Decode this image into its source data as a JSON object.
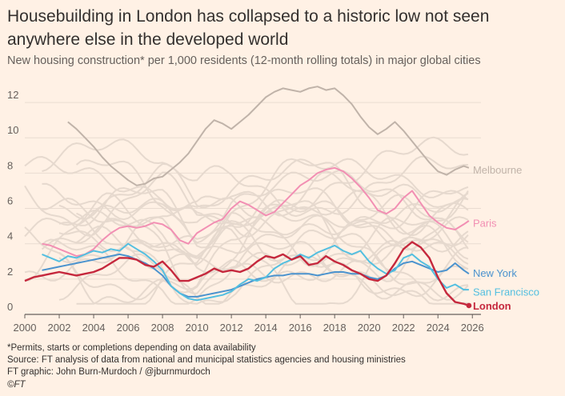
{
  "header": {
    "title": "Housebuilding in London has collapsed to a historic low not seen anywhere else in the developed world",
    "subtitle": "New housing construction* per 1,000 residents (12-month rolling totals) in major global cities"
  },
  "footer": {
    "note": "*Permits, starts or completions depending on data availability",
    "source": "Source: FT analysis of data from national and municipal statistics agencies and housing ministries",
    "credit": "FT graphic: John Burn-Murdoch / @jburnmurdoch",
    "copyright": "©FT"
  },
  "colors": {
    "background": "#FFF1E5",
    "background_city": "#E6D9CE",
    "melbourne": "#C0B3A9",
    "paris": "#F28FB3",
    "new_york": "#4B93CE",
    "san_francisco": "#53BFE0",
    "london": "#C5283D",
    "axis": "#66605C"
  },
  "chart_data": {
    "type": "line",
    "xlim": [
      2000,
      2026.5
    ],
    "ylim": [
      0,
      13
    ],
    "xticks": [
      2000,
      2002,
      2004,
      2006,
      2008,
      2010,
      2012,
      2014,
      2016,
      2018,
      2020,
      2022,
      2024,
      2026
    ],
    "yticks": [
      0,
      2,
      4,
      6,
      8,
      10,
      12
    ],
    "grid": true,
    "legend": "direct labels at line ends",
    "series": [
      {
        "name": "Melbourne",
        "highlight": true,
        "x": [
          2002.5,
          2003,
          2003.5,
          2004,
          2004.5,
          2005,
          2005.5,
          2006,
          2006.5,
          2007,
          2007.5,
          2008,
          2008.5,
          2009,
          2009.5,
          2010,
          2010.5,
          2011,
          2011.5,
          2012,
          2012.5,
          2013,
          2013.5,
          2014,
          2014.5,
          2015,
          2015.5,
          2016,
          2016.5,
          2017,
          2017.5,
          2018,
          2018.5,
          2019,
          2019.5,
          2020,
          2020.5,
          2021,
          2021.5,
          2022,
          2022.5,
          2023,
          2023.5,
          2024,
          2024.5,
          2025,
          2025.5,
          2025.8
        ],
        "values": [
          10.9,
          10.5,
          10.0,
          9.5,
          8.9,
          8.4,
          8.0,
          7.6,
          7.3,
          7.4,
          7.7,
          7.8,
          8.2,
          8.6,
          9.1,
          9.8,
          10.5,
          11.0,
          10.8,
          10.5,
          10.9,
          11.3,
          11.8,
          12.3,
          12.6,
          12.8,
          12.7,
          12.6,
          12.8,
          12.9,
          12.7,
          12.8,
          12.4,
          11.9,
          11.2,
          10.6,
          10.2,
          10.5,
          10.9,
          10.4,
          9.8,
          9.2,
          8.6,
          8.1,
          7.9,
          8.2,
          8.4,
          8.3
        ]
      },
      {
        "name": "Paris",
        "highlight": true,
        "x": [
          2001,
          2001.5,
          2002,
          2002.5,
          2003,
          2003.5,
          2004,
          2004.5,
          2005,
          2005.5,
          2006,
          2006.5,
          2007,
          2007.5,
          2008,
          2008.5,
          2009,
          2009.5,
          2010,
          2010.5,
          2011,
          2011.5,
          2012,
          2012.5,
          2013,
          2013.5,
          2014,
          2014.5,
          2015,
          2015.5,
          2016,
          2016.5,
          2017,
          2017.5,
          2018,
          2018.5,
          2019,
          2019.5,
          2020,
          2020.5,
          2021,
          2021.5,
          2022,
          2022.5,
          2023,
          2023.5,
          2024,
          2024.5,
          2025,
          2025.5,
          2025.8
        ],
        "values": [
          4.0,
          3.9,
          3.7,
          3.5,
          3.3,
          3.4,
          3.7,
          4.2,
          4.6,
          4.9,
          5.0,
          4.9,
          5.0,
          5.2,
          5.1,
          4.8,
          4.2,
          4.0,
          4.6,
          4.9,
          5.2,
          5.4,
          6.0,
          6.4,
          6.2,
          5.9,
          5.6,
          5.8,
          6.3,
          6.8,
          7.3,
          7.6,
          8.0,
          8.2,
          8.3,
          8.1,
          7.7,
          7.2,
          6.6,
          5.9,
          5.7,
          6.0,
          6.6,
          7.0,
          6.3,
          5.6,
          5.2,
          4.9,
          4.8,
          5.1,
          5.3
        ]
      },
      {
        "name": "New York",
        "highlight": true,
        "x": [
          2001,
          2001.5,
          2002,
          2002.5,
          2003,
          2003.5,
          2004,
          2004.5,
          2005,
          2005.5,
          2006,
          2006.5,
          2007,
          2007.5,
          2008,
          2008.5,
          2009,
          2009.5,
          2010,
          2010.5,
          2011,
          2011.5,
          2012,
          2012.5,
          2013,
          2013.5,
          2014,
          2014.5,
          2015,
          2015.5,
          2016,
          2016.5,
          2017,
          2017.5,
          2018,
          2018.5,
          2019,
          2019.5,
          2020,
          2020.5,
          2021,
          2021.5,
          2022,
          2022.5,
          2023,
          2023.5,
          2024,
          2024.5,
          2025,
          2025.5,
          2025.8
        ],
        "values": [
          2.5,
          2.6,
          2.7,
          2.8,
          2.9,
          3.0,
          3.1,
          3.2,
          3.3,
          3.4,
          3.3,
          3.1,
          2.9,
          2.6,
          2.2,
          1.6,
          1.2,
          1.0,
          1.0,
          1.1,
          1.2,
          1.3,
          1.4,
          1.6,
          1.8,
          2.0,
          2.1,
          2.2,
          2.2,
          2.3,
          2.3,
          2.3,
          2.2,
          2.3,
          2.4,
          2.4,
          2.3,
          2.3,
          2.1,
          2.0,
          2.2,
          2.6,
          2.9,
          3.0,
          2.8,
          2.6,
          2.4,
          2.5,
          2.9,
          2.5,
          2.3
        ]
      },
      {
        "name": "San Francisco",
        "highlight": true,
        "x": [
          2001,
          2001.5,
          2002,
          2002.5,
          2003,
          2003.5,
          2004,
          2004.5,
          2005,
          2005.5,
          2006,
          2006.5,
          2007,
          2007.5,
          2008,
          2008.5,
          2009,
          2009.5,
          2010,
          2010.5,
          2011,
          2011.5,
          2012,
          2012.5,
          2013,
          2013.5,
          2014,
          2014.5,
          2015,
          2015.5,
          2016,
          2016.5,
          2017,
          2017.5,
          2018,
          2018.5,
          2019,
          2019.5,
          2020,
          2020.5,
          2021,
          2021.5,
          2022,
          2022.5,
          2023,
          2023.5,
          2024,
          2024.5,
          2025,
          2025.5,
          2025.8
        ],
        "values": [
          3.4,
          3.2,
          3.0,
          3.3,
          3.2,
          3.4,
          3.6,
          3.5,
          3.7,
          3.6,
          4.0,
          3.7,
          3.4,
          3.0,
          2.5,
          1.6,
          1.2,
          0.9,
          0.8,
          0.9,
          1.0,
          1.1,
          1.3,
          1.7,
          2.0,
          1.9,
          2.1,
          2.6,
          2.9,
          3.1,
          3.4,
          3.2,
          3.5,
          3.7,
          3.9,
          3.6,
          3.4,
          3.6,
          3.0,
          2.6,
          2.3,
          2.5,
          3.2,
          3.4,
          3.0,
          2.7,
          2.0,
          1.5,
          1.7,
          1.4,
          1.4
        ]
      },
      {
        "name": "London",
        "highlight": true,
        "x": [
          2000,
          2000.5,
          2001,
          2001.5,
          2002,
          2002.5,
          2003,
          2003.5,
          2004,
          2004.5,
          2005,
          2005.5,
          2006,
          2006.5,
          2007,
          2007.5,
          2008,
          2008.5,
          2009,
          2009.5,
          2010,
          2010.5,
          2011,
          2011.5,
          2012,
          2012.5,
          2013,
          2013.5,
          2014,
          2014.5,
          2015,
          2015.5,
          2016,
          2016.5,
          2017,
          2017.5,
          2018,
          2018.5,
          2019,
          2019.5,
          2020,
          2020.5,
          2021,
          2021.5,
          2022,
          2022.5,
          2023,
          2023.5,
          2024,
          2024.5,
          2025,
          2025.5,
          2025.8
        ],
        "values": [
          1.9,
          2.1,
          2.2,
          2.3,
          2.4,
          2.3,
          2.2,
          2.3,
          2.4,
          2.6,
          2.9,
          3.2,
          3.2,
          3.1,
          2.8,
          2.7,
          3.0,
          2.5,
          1.9,
          1.9,
          2.1,
          2.3,
          2.6,
          2.4,
          2.5,
          2.4,
          2.6,
          3.0,
          3.3,
          3.2,
          3.4,
          3.1,
          3.3,
          2.8,
          2.9,
          3.3,
          3.0,
          2.8,
          2.5,
          2.3,
          2.0,
          1.9,
          2.2,
          2.9,
          3.7,
          4.1,
          3.8,
          3.2,
          2.1,
          1.2,
          0.7,
          0.6,
          0.5
        ]
      }
    ]
  }
}
